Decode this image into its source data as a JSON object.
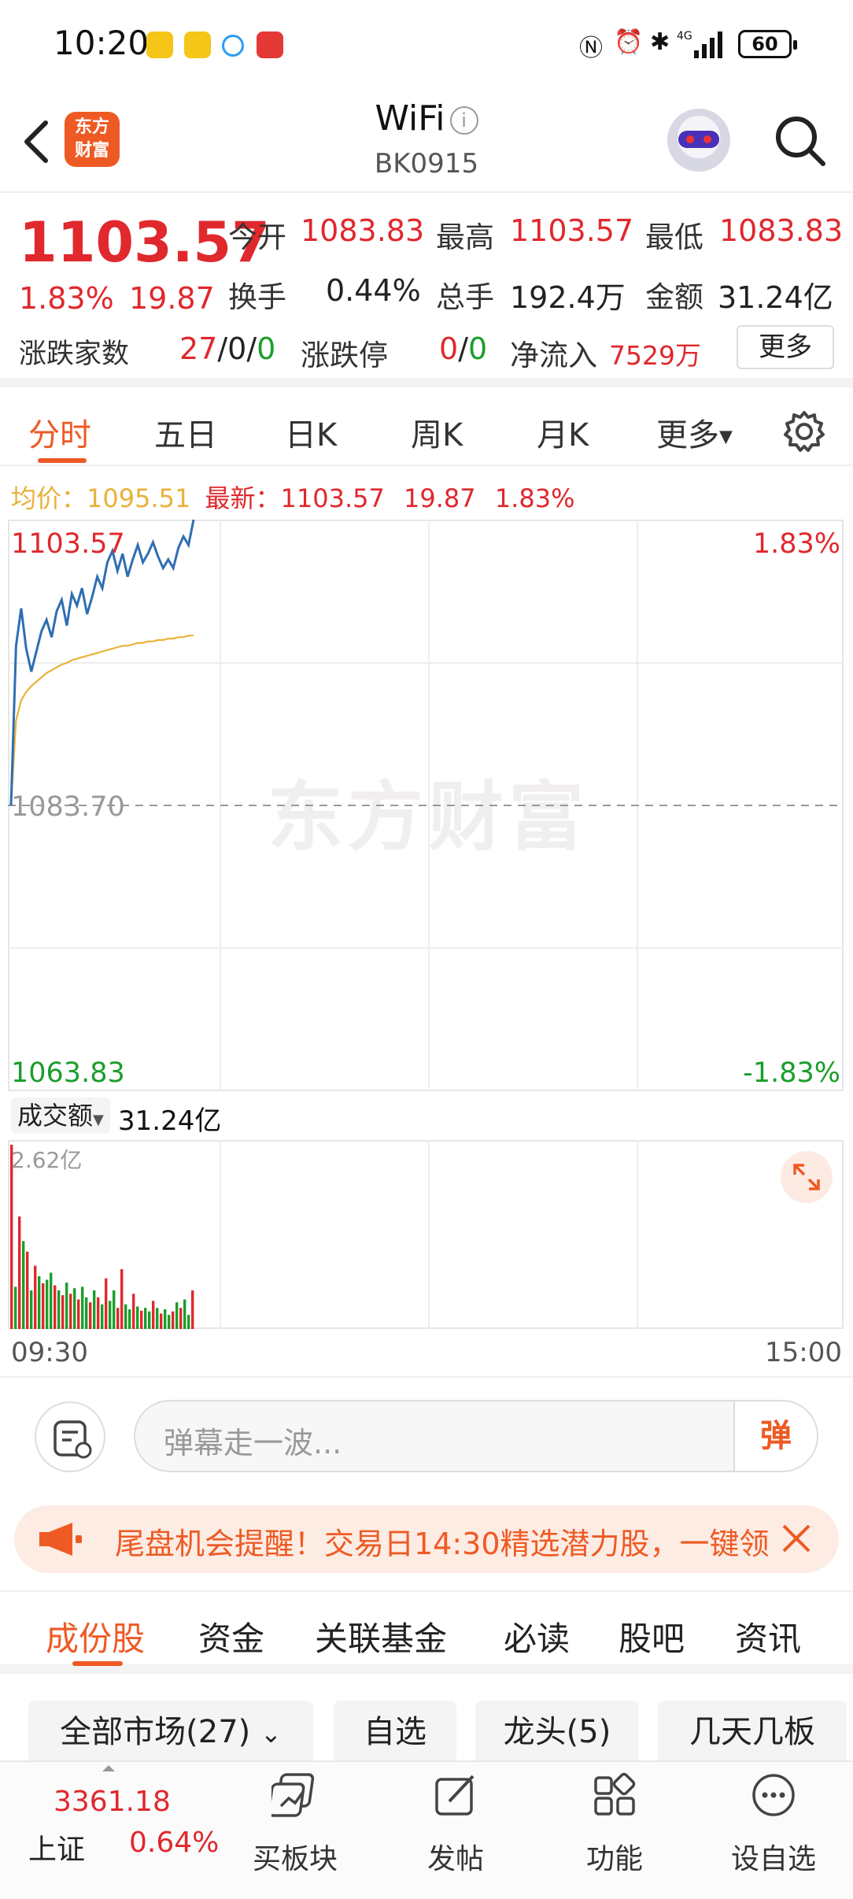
{
  "status_bar": {
    "time": "10:20",
    "battery": "60"
  },
  "header": {
    "back_icon": "chevron-left-icon",
    "logo_text_top": "东方",
    "logo_text_bottom": "财富",
    "title": "WiFi",
    "code": "BK0915",
    "info_icon": "info-icon",
    "avatar_icon": "robot-avatar-icon",
    "search_icon": "search-icon"
  },
  "quote": {
    "price": "1103.57",
    "change_pct": "1.83%",
    "change": "19.87",
    "open_label": "今开",
    "open": "1083.83",
    "high_label": "最高",
    "high": "1103.57",
    "low_label": "最低",
    "low": "1083.83",
    "turnover_label": "换手",
    "turnover": "0.44%",
    "volume_label": "总手",
    "volume": "192.4万",
    "amount_label": "金额",
    "amount": "31.24亿",
    "updown_label": "涨跌家数",
    "up": "27",
    "flat": "0",
    "down": "0",
    "sep": "/",
    "limit_label": "涨跌停",
    "limit_up": "0",
    "limit_down": "0",
    "netflow_label": "净流入",
    "netflow": "7529万",
    "more_button": "更多"
  },
  "chart_tabs": {
    "items": [
      "分时",
      "五日",
      "日K",
      "周K",
      "月K",
      "更多"
    ],
    "active": "分时",
    "settings_icon": "gear-icon"
  },
  "avg_line": {
    "avg_label": "均价：",
    "avg_value": "1095.51",
    "latest_label": "最新：",
    "latest_value": "1103.57",
    "latest_change": "19.87",
    "latest_pct": "1.83%"
  },
  "price_axis": {
    "top": "1103.57",
    "mid": "1083.70",
    "bottom": "1063.83",
    "top_pct": "1.83%",
    "bottom_pct": "-1.83%"
  },
  "watermark": "东方财富",
  "volume_panel": {
    "selector": "成交额",
    "total": "31.24亿",
    "max_label": "2.62亿",
    "expand_icon": "expand-icon"
  },
  "time_axis": {
    "start": "09:30",
    "end": "15:00"
  },
  "chart_data": {
    "type": "line",
    "title": "",
    "xlabel": "",
    "ylabel": "",
    "ylim": [
      1063.83,
      1103.57
    ],
    "x_range": [
      "09:30",
      "15:00"
    ],
    "series": [
      {
        "name": "最新",
        "color": "#2f6eb3",
        "values": [
          1083.7,
          1094.8,
          1097.4,
          1094.6,
          1093.0,
          1094.4,
          1095.8,
          1096.6,
          1095.4,
          1097.2,
          1098.0,
          1096.2,
          1098.4,
          1097.6,
          1098.8,
          1097.0,
          1098.2,
          1099.6,
          1098.8,
          1100.6,
          1101.4,
          1100.0,
          1101.2,
          1099.6,
          1100.8,
          1101.8,
          1100.6,
          1101.2,
          1102.0,
          1101.0,
          1100.2,
          1100.8,
          1100.2,
          1101.6,
          1102.4,
          1101.8,
          1103.57
        ]
      },
      {
        "name": "均价",
        "color": "#e8b23a",
        "values": [
          1083.7,
          1089.6,
          1091.0,
          1091.6,
          1092.0,
          1092.3,
          1092.6,
          1092.9,
          1093.1,
          1093.3,
          1093.5,
          1093.6,
          1093.8,
          1093.9,
          1094.0,
          1094.1,
          1094.2,
          1094.3,
          1094.4,
          1094.5,
          1094.6,
          1094.7,
          1094.8,
          1094.8,
          1094.9,
          1095.0,
          1095.0,
          1095.1,
          1095.1,
          1095.2,
          1095.2,
          1095.3,
          1095.3,
          1095.4,
          1095.4,
          1095.5,
          1095.51
        ]
      }
    ],
    "volume": {
      "unit": "亿",
      "max": 2.62,
      "values": [
        2.62,
        0.6,
        1.6,
        1.25,
        1.1,
        0.55,
        0.9,
        0.75,
        0.65,
        0.7,
        0.8,
        0.62,
        0.55,
        0.48,
        0.66,
        0.5,
        0.58,
        0.42,
        0.6,
        0.45,
        0.38,
        0.55,
        0.45,
        0.35,
        0.72,
        0.4,
        0.55,
        0.3,
        0.85,
        0.35,
        0.28,
        0.5,
        0.32,
        0.26,
        0.3,
        0.25,
        0.4,
        0.3,
        0.22,
        0.28,
        0.2,
        0.25,
        0.38,
        0.3,
        0.42,
        0.2,
        0.55
      ],
      "colors": [
        "r",
        "g",
        "r",
        "g",
        "r",
        "g",
        "r",
        "g",
        "r",
        "g",
        "g",
        "r",
        "g",
        "r",
        "g",
        "r",
        "g",
        "r",
        "g",
        "g",
        "r",
        "g",
        "r",
        "g",
        "r",
        "g",
        "g",
        "r",
        "r",
        "g",
        "g",
        "r",
        "g",
        "r",
        "g",
        "g",
        "r",
        "g",
        "r",
        "g",
        "g",
        "r",
        "g",
        "r",
        "g",
        "g",
        "r"
      ]
    }
  },
  "comment_bar": {
    "list_icon": "comment-list-icon",
    "placeholder": "弹幕走一波...",
    "danmu_button": "弹"
  },
  "banner": {
    "horn_icon": "megaphone-icon",
    "text": "尾盘机会提醒！交易日14:30精选潜力股，一键领",
    "close_icon": "close-icon"
  },
  "lower_tabs": {
    "items": [
      "成份股",
      "资金",
      "关联基金",
      "必读",
      "股吧",
      "资讯"
    ],
    "active": "成份股"
  },
  "filters": {
    "market": "全部市场(27)",
    "self": "自选",
    "leader": "龙头(5)",
    "streak": "几天几板"
  },
  "bottom_nav": {
    "index_price": "3361.18",
    "index_name": "上证",
    "index_pct": "0.64%",
    "buy_sector": "买板块",
    "post": "发帖",
    "functions": "功能",
    "add_watch": "设自选"
  }
}
